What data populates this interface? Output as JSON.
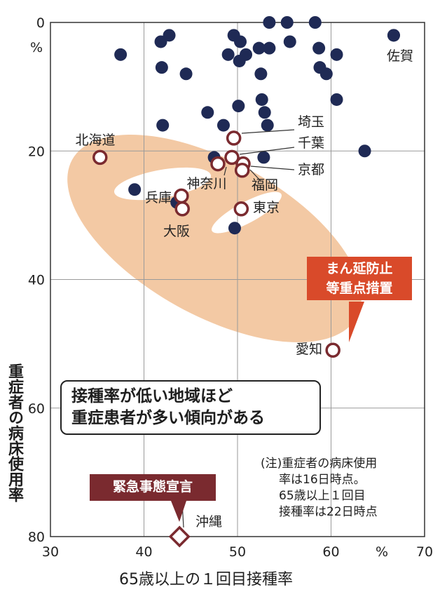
{
  "chart_data": {
    "type": "scatter",
    "xlabel": "65歳以上の１回目接種率",
    "ylabel": "重症者の病床使用率",
    "x_unit": "%",
    "y_unit": "%",
    "xlim": [
      30,
      70
    ],
    "ylim": [
      80,
      0
    ],
    "x_ticks": [
      "30",
      "40",
      "50",
      "60",
      "70"
    ],
    "y_ticks": [
      "0",
      "20",
      "40",
      "60",
      "80"
    ],
    "grid": true,
    "points": [
      {
        "x": 37.5,
        "y": 5
      },
      {
        "x": 39.0,
        "y": 26
      },
      {
        "x": 41.8,
        "y": 3
      },
      {
        "x": 42.7,
        "y": 2
      },
      {
        "x": 41.9,
        "y": 7
      },
      {
        "x": 42.0,
        "y": 16
      },
      {
        "x": 44.5,
        "y": 8
      },
      {
        "x": 43.5,
        "y": 28
      },
      {
        "x": 46.8,
        "y": 14
      },
      {
        "x": 47.5,
        "y": 21
      },
      {
        "x": 48.5,
        "y": 16
      },
      {
        "x": 49.0,
        "y": 5
      },
      {
        "x": 49.6,
        "y": 2
      },
      {
        "x": 50.3,
        "y": 3
      },
      {
        "x": 50.2,
        "y": 6
      },
      {
        "x": 50.9,
        "y": 5
      },
      {
        "x": 50.1,
        "y": 13
      },
      {
        "x": 49.7,
        "y": 32
      },
      {
        "x": 52.3,
        "y": 4
      },
      {
        "x": 52.5,
        "y": 8
      },
      {
        "x": 52.6,
        "y": 12
      },
      {
        "x": 52.9,
        "y": 14
      },
      {
        "x": 53.2,
        "y": 16
      },
      {
        "x": 52.8,
        "y": 21
      },
      {
        "x": 53.4,
        "y": 4
      },
      {
        "x": 53.4,
        "y": 0
      },
      {
        "x": 55.3,
        "y": 0
      },
      {
        "x": 55.6,
        "y": 3
      },
      {
        "x": 58.3,
        "y": 0
      },
      {
        "x": 58.7,
        "y": 4
      },
      {
        "x": 58.8,
        "y": 7
      },
      {
        "x": 59.5,
        "y": 8
      },
      {
        "x": 60.6,
        "y": 5
      },
      {
        "x": 60.6,
        "y": 12
      },
      {
        "x": 63.6,
        "y": 20
      },
      {
        "x": 66.7,
        "y": 2
      }
    ],
    "labeled_points": [
      {
        "name": "北海道",
        "x": 35.3,
        "y": 21,
        "style": "open"
      },
      {
        "name": "埼玉",
        "x": 49.6,
        "y": 18,
        "style": "open"
      },
      {
        "name": "千葉",
        "x": 49.4,
        "y": 21,
        "style": "open"
      },
      {
        "name": "神奈川",
        "x": 47.9,
        "y": 22,
        "style": "open"
      },
      {
        "name": "京都",
        "x": 50.6,
        "y": 22,
        "style": "open"
      },
      {
        "name": "福岡",
        "x": 50.5,
        "y": 23,
        "style": "open"
      },
      {
        "name": "兵庫",
        "x": 44.0,
        "y": 27,
        "style": "open"
      },
      {
        "name": "大阪",
        "x": 44.1,
        "y": 29,
        "style": "open"
      },
      {
        "name": "東京",
        "x": 50.4,
        "y": 29,
        "style": "open"
      },
      {
        "name": "愛知",
        "x": 60.2,
        "y": 51,
        "style": "open"
      },
      {
        "name": "沖縄",
        "x": 43.8,
        "y": 80,
        "style": "diamond"
      },
      {
        "name": "佐賀",
        "x": 66.7,
        "y": 2,
        "style": "filled"
      }
    ],
    "annotations": {
      "conclusion": [
        "接種率が低い地域ほど",
        "重症患者が多い傾向がある"
      ],
      "note": [
        "(注)重症者の病床使用",
        "率は16日時点。",
        "65歳以上１回目",
        "接種率は22日時点"
      ],
      "measure_label": [
        "まん延防止",
        "等重点措置"
      ],
      "emergency_label": "緊急事態宣言"
    },
    "colors": {
      "dot": "#1f2a55",
      "open_ring": "#7a2a2f",
      "highlight": "#f3c9a4",
      "measure_box": "#d94a2a",
      "emergency_box": "#7a2a2f"
    }
  }
}
